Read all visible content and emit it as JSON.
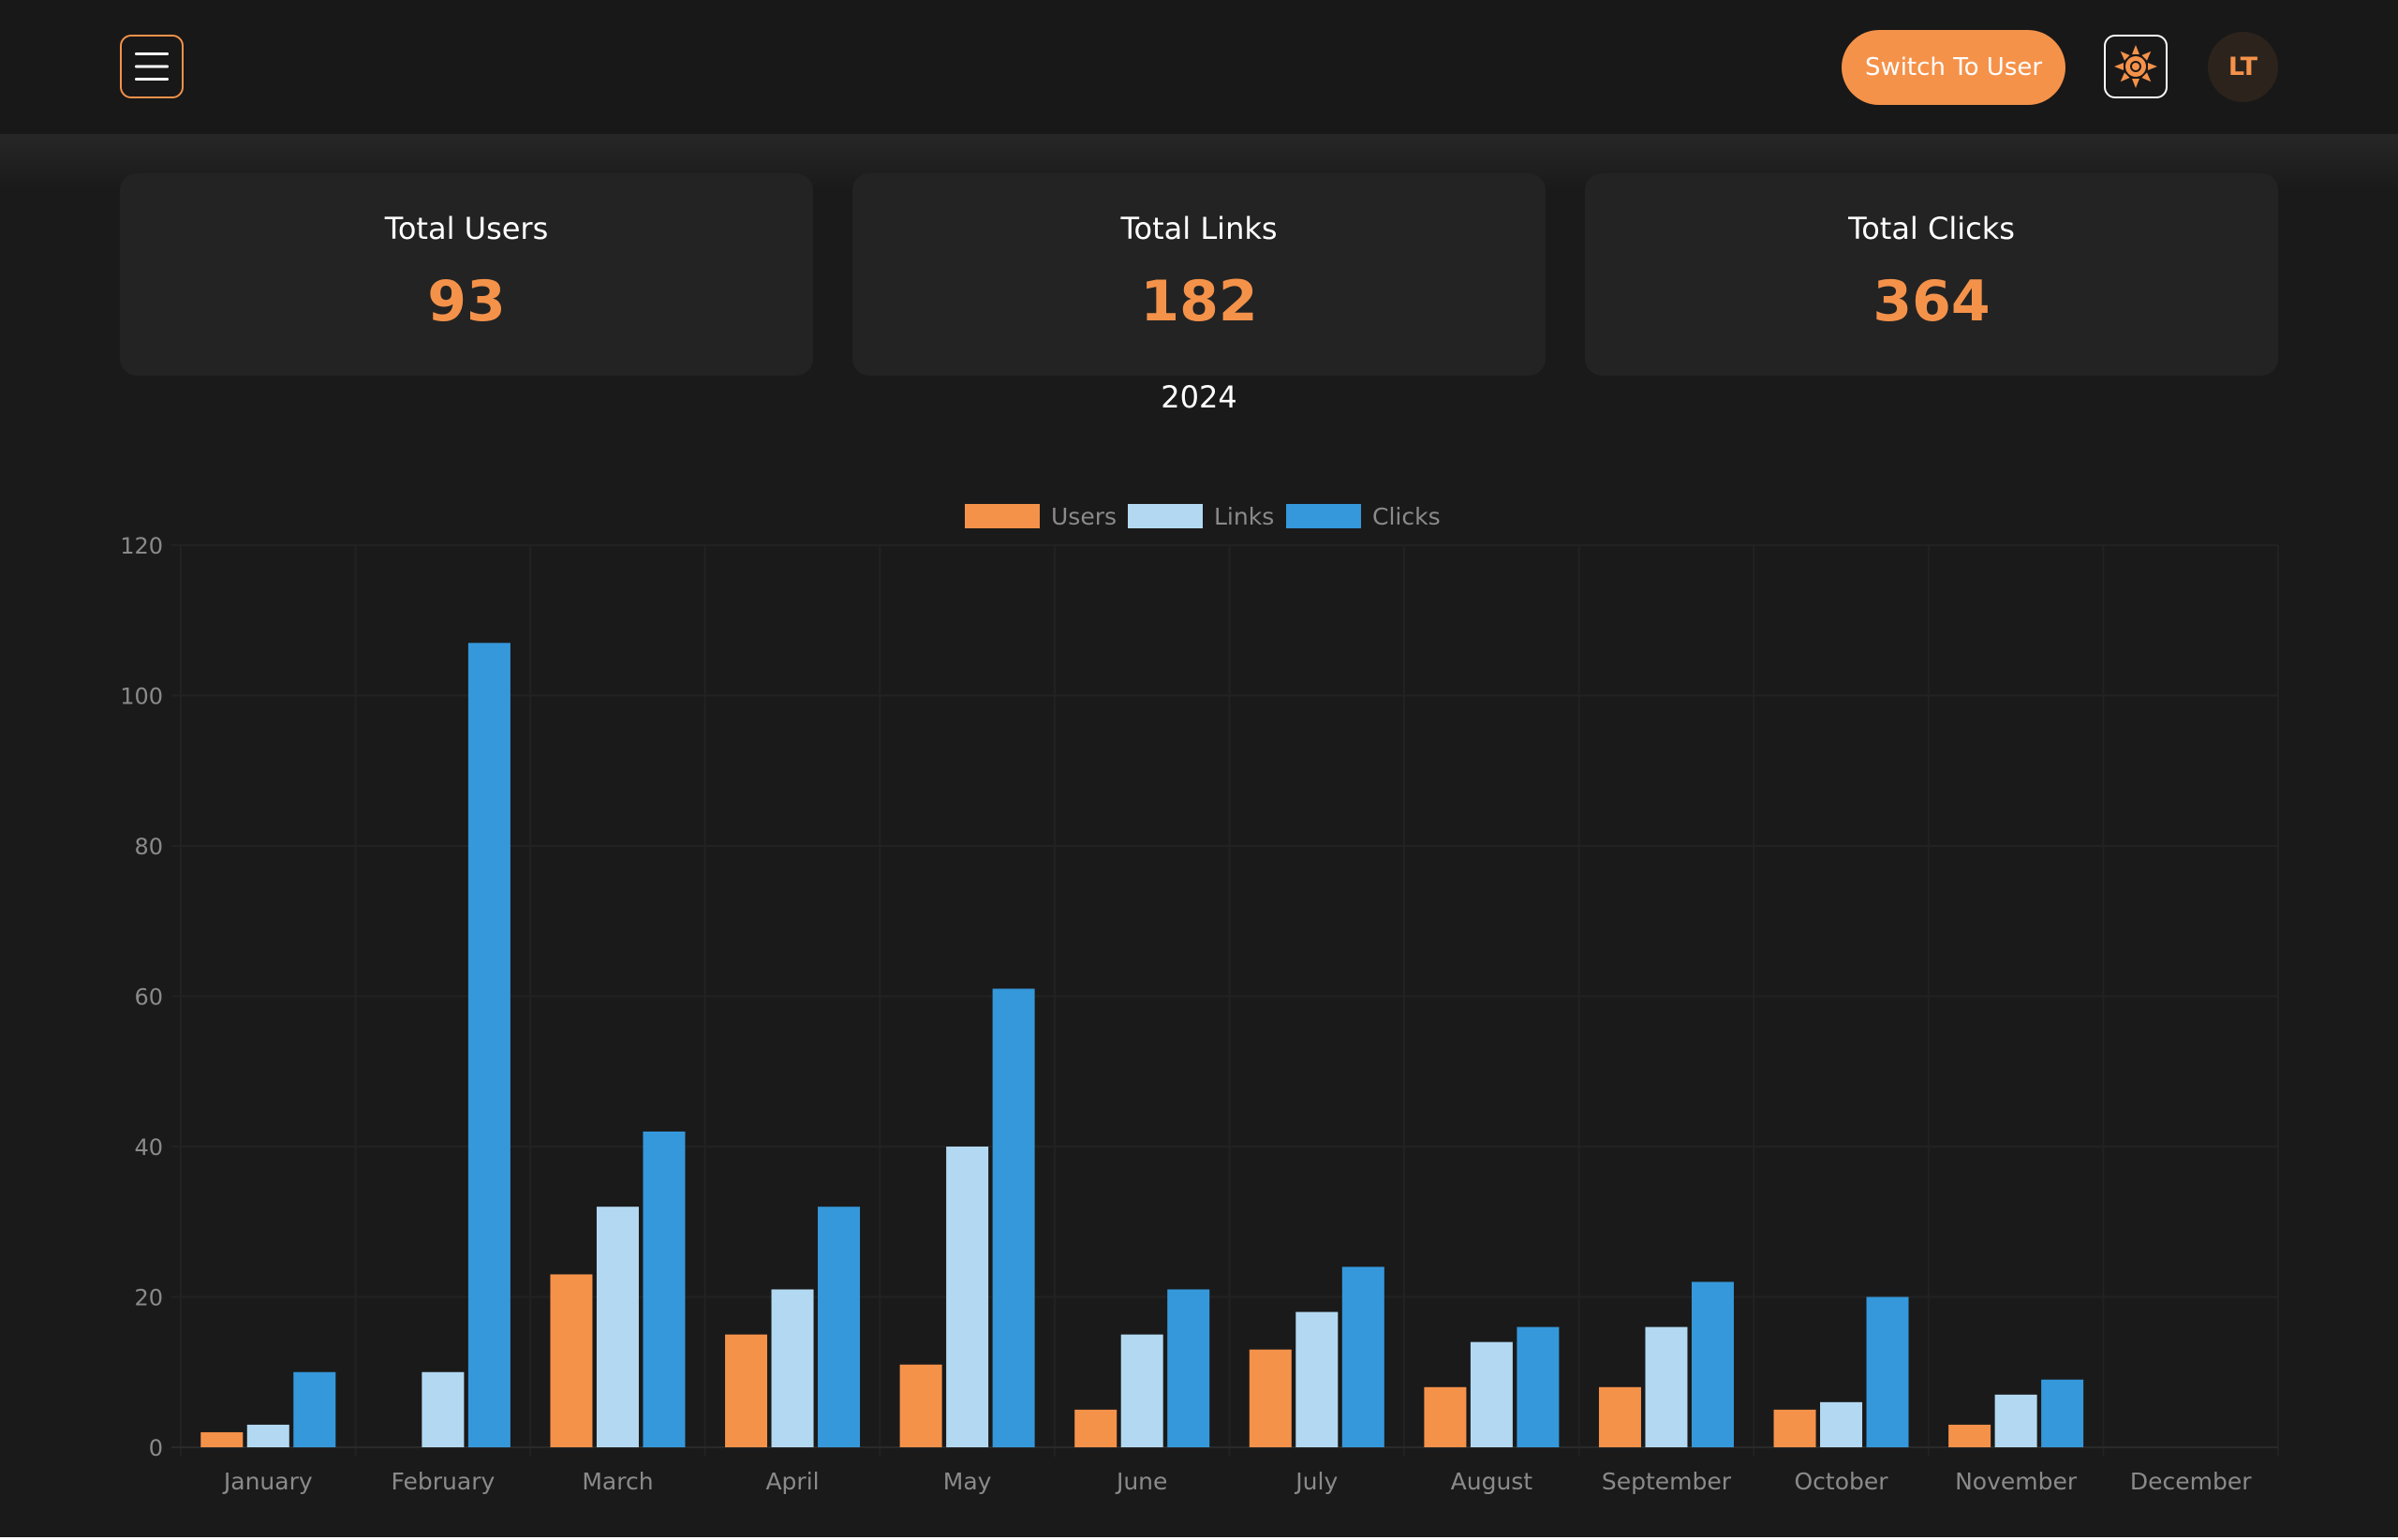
{
  "header": {
    "menu_icon": "hamburger-menu-icon",
    "switch_label": "Switch To User",
    "theme_icon": "sun-icon",
    "avatar_initials": "LT",
    "accent_color": "#f5924a"
  },
  "stats": [
    {
      "label": "Total Users",
      "value": "93"
    },
    {
      "label": "Total Links",
      "value": "182"
    },
    {
      "label": "Total Clicks",
      "value": "364"
    }
  ],
  "year": "2024",
  "chart_data": {
    "type": "bar",
    "categories": [
      "January",
      "February",
      "March",
      "April",
      "May",
      "June",
      "July",
      "August",
      "September",
      "October",
      "November",
      "December"
    ],
    "series": [
      {
        "name": "Users",
        "color": "#f5924a",
        "values": [
          2,
          0,
          23,
          15,
          11,
          5,
          13,
          8,
          8,
          5,
          3,
          0
        ]
      },
      {
        "name": "Links",
        "color": "#b3d9f2",
        "values": [
          3,
          10,
          32,
          21,
          40,
          15,
          18,
          14,
          16,
          6,
          7,
          0
        ]
      },
      {
        "name": "Clicks",
        "color": "#3598db",
        "values": [
          10,
          107,
          42,
          32,
          61,
          21,
          24,
          16,
          22,
          20,
          9,
          0
        ]
      }
    ],
    "y_ticks": [
      "0",
      "20",
      "40",
      "60",
      "80",
      "100",
      "120"
    ],
    "ylim": [
      0,
      120
    ],
    "legend_position": "top-center",
    "grid": true
  }
}
